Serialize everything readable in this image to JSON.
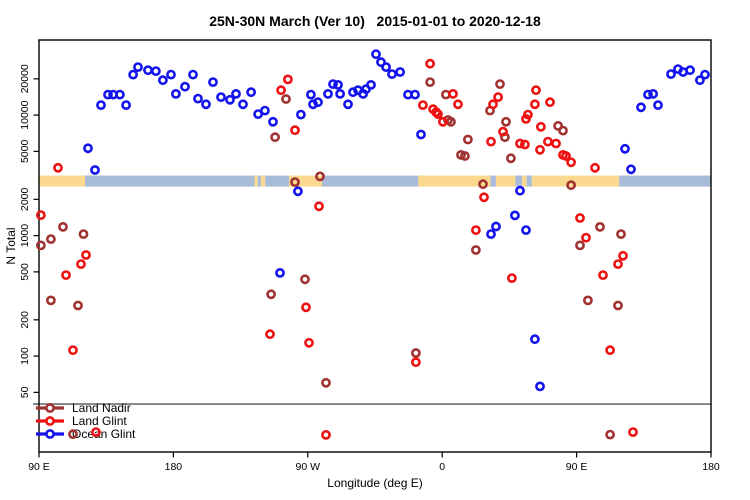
{
  "chart_data": {
    "type": "scatter",
    "title": "25N-30N March (Ver 10)   2015-01-01 to 2020-12-18",
    "xlabel": "Longitude (deg E)",
    "ylabel": "N Total",
    "x_axis": {
      "lim": [
        90,
        540
      ],
      "ticks": [
        {
          "lon": 90,
          "label": "90 E"
        },
        {
          "lon": 180,
          "label": "180"
        },
        {
          "lon": 270,
          "label": "90 W"
        },
        {
          "lon": 360,
          "label": "0"
        },
        {
          "lon": 450,
          "label": "90 E"
        },
        {
          "lon": 540,
          "label": "180"
        }
      ]
    },
    "y_axis": {
      "scale": "log",
      "lim": [
        16,
        42000
      ],
      "ticks": [
        50,
        100,
        200,
        500,
        1000,
        2000,
        5000,
        10000,
        20000
      ]
    },
    "reference_line": {
      "y": 40,
      "color": "#808080"
    },
    "land_ocean_band": {
      "y_range": [
        2550,
        3150
      ],
      "land_color": "#FAD98E",
      "ocean_color": "#A8BBD9",
      "segments": [
        {
          "from": 90,
          "to": 120.8,
          "type": "land"
        },
        {
          "from": 120.8,
          "to": 234.3,
          "type": "ocean"
        },
        {
          "from": 234.3,
          "to": 236.5,
          "type": "land"
        },
        {
          "from": 236.5,
          "to": 238.6,
          "type": "ocean"
        },
        {
          "from": 238.6,
          "to": 241.5,
          "type": "land"
        },
        {
          "from": 241.5,
          "to": 257.4,
          "type": "ocean"
        },
        {
          "from": 257.4,
          "to": 279.5,
          "type": "land"
        },
        {
          "from": 279.5,
          "to": 344.0,
          "type": "ocean"
        },
        {
          "from": 344.0,
          "to": 392.3,
          "type": "land"
        },
        {
          "from": 392.3,
          "to": 396.0,
          "type": "ocean"
        },
        {
          "from": 396.0,
          "to": 409.0,
          "type": "land"
        },
        {
          "from": 409.0,
          "to": 413.5,
          "type": "ocean"
        },
        {
          "from": 413.5,
          "to": 416.5,
          "type": "land"
        },
        {
          "from": 416.5,
          "to": 420.0,
          "type": "ocean"
        },
        {
          "from": 420.0,
          "to": 478.5,
          "type": "land"
        },
        {
          "from": 478.5,
          "to": 540.0,
          "type": "ocean"
        }
      ]
    },
    "legend": {
      "position": "bottom-left",
      "entries": [
        "Land Nadir",
        "Land Glint",
        "Ocean Glint"
      ]
    },
    "series": [
      {
        "name": "Land Nadir",
        "color": "#A03232",
        "points": [
          [
            255.4,
            13600
          ],
          [
            248.1,
            6560
          ],
          [
            278.2,
            3100
          ],
          [
            261.4,
            2780
          ],
          [
            268.1,
            434
          ],
          [
            245.4,
            326
          ],
          [
            282.2,
            60
          ],
          [
            106.1,
            1180
          ],
          [
            98.0,
            935
          ],
          [
            91.3,
            830
          ],
          [
            119.8,
            1030
          ],
          [
            98.0,
            290
          ],
          [
            116.1,
            263
          ],
          [
            112.8,
            22.5
          ],
          [
            351.9,
            18800
          ],
          [
            362.5,
            14800
          ],
          [
            363.9,
            9100
          ],
          [
            365.9,
            8800
          ],
          [
            398.7,
            18100
          ],
          [
            392.0,
            10900
          ],
          [
            402.7,
            8800
          ],
          [
            402.0,
            6560
          ],
          [
            377.2,
            6270
          ],
          [
            406.0,
            4380
          ],
          [
            372.6,
            4670
          ],
          [
            375.2,
            4580
          ],
          [
            440.9,
            7440
          ],
          [
            437.6,
            8140
          ],
          [
            387.3,
            2670
          ],
          [
            446.3,
            2620
          ],
          [
            382.6,
            760
          ],
          [
            342.4,
            106
          ],
          [
            465.7,
            1180
          ],
          [
            452.3,
            830
          ],
          [
            479.7,
            1030
          ],
          [
            457.6,
            290
          ],
          [
            477.7,
            263
          ],
          [
            472.4,
            22.3
          ]
        ]
      },
      {
        "name": "Land Glint",
        "color": "#EE1111",
        "points": [
          [
            102.7,
            3650
          ],
          [
            91.3,
            1480
          ],
          [
            121.5,
            690
          ],
          [
            118.1,
            580
          ],
          [
            108.1,
            470
          ],
          [
            112.8,
            112
          ],
          [
            128.2,
            23.4
          ],
          [
            256.7,
            19800
          ],
          [
            252.1,
            16100
          ],
          [
            261.4,
            7500
          ],
          [
            277.5,
            1750
          ],
          [
            268.8,
            254
          ],
          [
            244.7,
            152
          ],
          [
            270.8,
            129
          ],
          [
            282.2,
            22.2
          ],
          [
            351.9,
            26700
          ],
          [
            347.1,
            12100
          ],
          [
            355.9,
            10600
          ],
          [
            367.2,
            15000
          ],
          [
            370.6,
            12300
          ],
          [
            353.9,
            11200
          ],
          [
            357.2,
            10200
          ],
          [
            360.5,
            8800
          ],
          [
            397.4,
            14100
          ],
          [
            394.0,
            12300
          ],
          [
            400.7,
            7280
          ],
          [
            392.7,
            6030
          ],
          [
            412.1,
            5810
          ],
          [
            415.4,
            5700
          ],
          [
            422.8,
            16100
          ],
          [
            422.1,
            12300
          ],
          [
            432.2,
            12800
          ],
          [
            417.4,
            10100
          ],
          [
            416.1,
            9300
          ],
          [
            426.1,
            8000
          ],
          [
            430.8,
            6030
          ],
          [
            436.2,
            5810
          ],
          [
            440.9,
            4670
          ],
          [
            425.5,
            5150
          ],
          [
            442.9,
            4580
          ],
          [
            446.3,
            4060
          ],
          [
            462.3,
            3650
          ],
          [
            388.0,
            2080
          ],
          [
            382.6,
            1110
          ],
          [
            406.7,
            444
          ],
          [
            342.4,
            89
          ],
          [
            452.3,
            1400
          ],
          [
            456.3,
            960
          ],
          [
            481.1,
            680
          ],
          [
            477.7,
            580
          ],
          [
            467.7,
            470
          ],
          [
            472.4,
            112
          ],
          [
            487.8,
            23.4
          ]
        ]
      },
      {
        "name": "Ocean Glint",
        "color": "#1313EE",
        "points": [
          [
            156.3,
            25000
          ],
          [
            163.0,
            23600
          ],
          [
            153.0,
            21700
          ],
          [
            168.3,
            23200
          ],
          [
            173.0,
            19500
          ],
          [
            178.4,
            21700
          ],
          [
            193.1,
            21700
          ],
          [
            181.7,
            15000
          ],
          [
            187.8,
            17200
          ],
          [
            196.5,
            13700
          ],
          [
            201.8,
            12300
          ],
          [
            136.2,
            14800
          ],
          [
            139.6,
            14800
          ],
          [
            144.2,
            14800
          ],
          [
            131.5,
            12100
          ],
          [
            148.3,
            12100
          ],
          [
            122.8,
            5300
          ],
          [
            127.5,
            3500
          ],
          [
            206.5,
            18800
          ],
          [
            211.9,
            14100
          ],
          [
            217.9,
            13400
          ],
          [
            221.9,
            15000
          ],
          [
            226.6,
            12300
          ],
          [
            232.0,
            15500
          ],
          [
            236.7,
            10200
          ],
          [
            241.3,
            10900
          ],
          [
            246.7,
            8800
          ],
          [
            265.4,
            10100
          ],
          [
            272.1,
            14800
          ],
          [
            273.5,
            12300
          ],
          [
            276.8,
            12800
          ],
          [
            283.5,
            15000
          ],
          [
            286.9,
            18100
          ],
          [
            290.2,
            17800
          ],
          [
            291.6,
            15000
          ],
          [
            296.9,
            12300
          ],
          [
            300.3,
            15500
          ],
          [
            303.6,
            16100
          ],
          [
            307.0,
            15000
          ],
          [
            309.0,
            16400
          ],
          [
            312.3,
            17800
          ],
          [
            315.7,
            32000
          ],
          [
            319.0,
            27500
          ],
          [
            322.4,
            25000
          ],
          [
            326.4,
            21900
          ],
          [
            331.8,
            22800
          ],
          [
            337.1,
            14800
          ],
          [
            341.8,
            14800
          ],
          [
            345.8,
            6900
          ],
          [
            513.2,
            21900
          ],
          [
            517.9,
            24100
          ],
          [
            521.3,
            22800
          ],
          [
            526.0,
            23600
          ],
          [
            532.6,
            19500
          ],
          [
            536.0,
            21700
          ],
          [
            497.8,
            14800
          ],
          [
            501.2,
            15000
          ],
          [
            504.5,
            12100
          ],
          [
            493.1,
            11600
          ],
          [
            482.4,
            5250
          ],
          [
            486.4,
            3550
          ],
          [
            263.4,
            2330
          ],
          [
            251.4,
            490
          ],
          [
            412.1,
            2360
          ],
          [
            408.7,
            1470
          ],
          [
            396.0,
            1190
          ],
          [
            392.7,
            1030
          ],
          [
            416.1,
            1110
          ],
          [
            422.1,
            138
          ],
          [
            425.5,
            56
          ]
        ]
      }
    ]
  }
}
